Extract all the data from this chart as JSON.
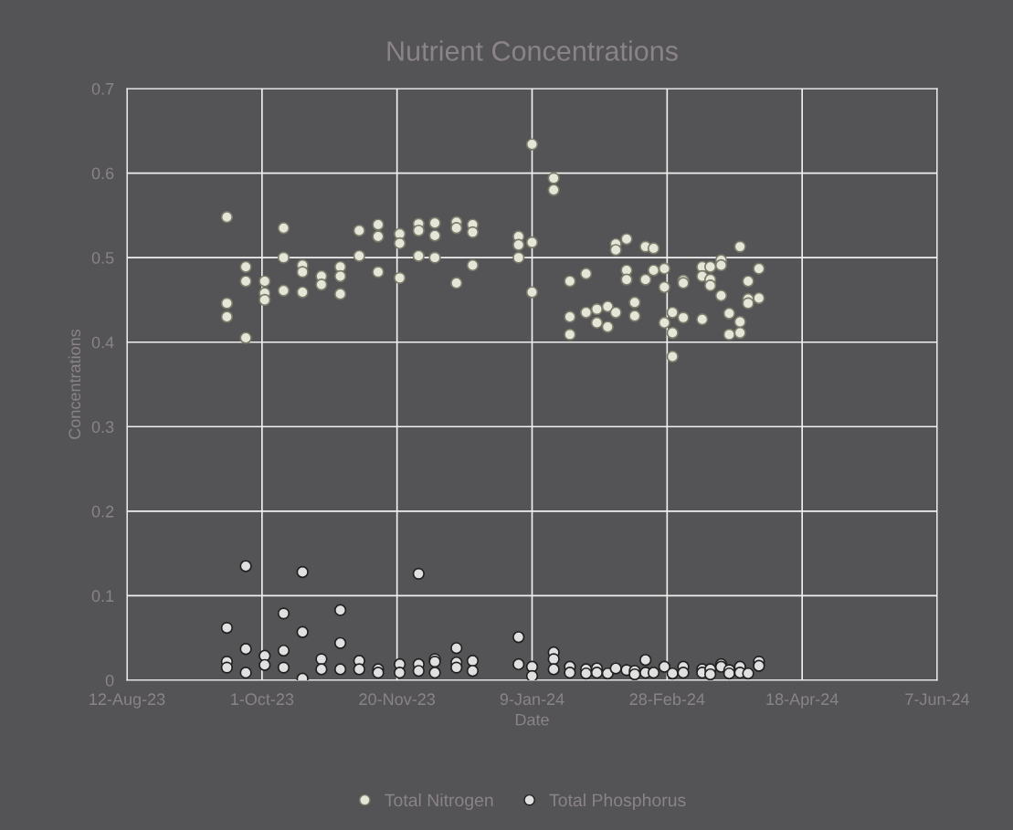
{
  "chart_data": {
    "type": "scatter",
    "title": "Nutrient Concentrations",
    "xlabel": "Date",
    "ylabel": "Concentrations",
    "xlim": [
      "2023-08-12",
      "2024-06-07"
    ],
    "xticks": [
      {
        "value": "2023-08-12",
        "label": "12-Aug-23"
      },
      {
        "value": "2023-10-01",
        "label": "1-Oct-23"
      },
      {
        "value": "2023-11-20",
        "label": "20-Nov-23"
      },
      {
        "value": "2024-01-09",
        "label": "9-Jan-24"
      },
      {
        "value": "2024-02-28",
        "label": "28-Feb-24"
      },
      {
        "value": "2024-04-18",
        "label": "18-Apr-24"
      },
      {
        "value": "2024-06-07",
        "label": "7-Jun-24"
      }
    ],
    "ylim": [
      0,
      0.7
    ],
    "yticks": [
      {
        "value": 0,
        "label": "0"
      },
      0.1,
      0.2,
      0.3,
      0.4,
      0.5,
      0.6,
      0.7
    ],
    "grid": true,
    "legend": "bottom",
    "marker": "circle",
    "series": [
      {
        "name": "Total Nitrogen",
        "color": "#e6e6d8",
        "x": [
          "2023-09-18",
          "2023-09-18",
          "2023-09-18",
          "2023-09-25",
          "2023-09-25",
          "2023-09-25",
          "2023-10-02",
          "2023-10-02",
          "2023-10-02",
          "2023-10-09",
          "2023-10-09",
          "2023-10-09",
          "2023-10-16",
          "2023-10-16",
          "2023-10-16",
          "2023-10-23",
          "2023-10-23",
          "2023-10-30",
          "2023-10-30",
          "2023-10-30",
          "2023-11-06",
          "2023-11-06",
          "2023-11-13",
          "2023-11-13",
          "2023-11-13",
          "2023-11-21",
          "2023-11-21",
          "2023-11-21",
          "2023-11-28",
          "2023-11-28",
          "2023-11-28",
          "2023-12-04",
          "2023-12-04",
          "2023-12-04",
          "2023-12-12",
          "2023-12-12",
          "2023-12-12",
          "2023-12-18",
          "2023-12-18",
          "2023-12-18",
          "2024-01-04",
          "2024-01-04",
          "2024-01-04",
          "2024-01-09",
          "2024-01-09",
          "2024-01-09",
          "2024-01-17",
          "2024-01-17",
          "2024-01-23",
          "2024-01-23",
          "2024-01-23",
          "2024-01-29",
          "2024-01-29",
          "2024-02-02",
          "2024-02-02",
          "2024-02-06",
          "2024-02-06",
          "2024-02-09",
          "2024-02-09",
          "2024-02-09",
          "2024-02-13",
          "2024-02-13",
          "2024-02-13",
          "2024-02-16",
          "2024-02-16",
          "2024-02-20",
          "2024-02-20",
          "2024-02-23",
          "2024-02-23",
          "2024-02-27",
          "2024-02-27",
          "2024-02-27",
          "2024-03-01",
          "2024-03-01",
          "2024-03-01",
          "2024-03-05",
          "2024-03-05",
          "2024-03-05",
          "2024-03-12",
          "2024-03-12",
          "2024-03-12",
          "2024-03-15",
          "2024-03-15",
          "2024-03-15",
          "2024-03-19",
          "2024-03-19",
          "2024-03-19",
          "2024-03-22",
          "2024-03-22",
          "2024-03-26",
          "2024-03-26",
          "2024-03-26",
          "2024-03-29",
          "2024-03-29",
          "2024-03-29",
          "2024-04-02",
          "2024-04-02"
        ],
        "values": [
          0.548,
          0.446,
          0.43,
          0.489,
          0.472,
          0.405,
          0.472,
          0.458,
          0.45,
          0.535,
          0.5,
          0.461,
          0.491,
          0.483,
          0.459,
          0.478,
          0.468,
          0.489,
          0.478,
          0.457,
          0.532,
          0.502,
          0.539,
          0.525,
          0.483,
          0.528,
          0.517,
          0.476,
          0.54,
          0.532,
          0.502,
          0.541,
          0.526,
          0.5,
          0.542,
          0.535,
          0.47,
          0.539,
          0.53,
          0.491,
          0.525,
          0.515,
          0.5,
          0.634,
          0.518,
          0.459,
          0.594,
          0.58,
          0.472,
          0.43,
          0.409,
          0.481,
          0.435,
          0.439,
          0.423,
          0.442,
          0.418,
          0.516,
          0.509,
          0.435,
          0.522,
          0.485,
          0.474,
          0.447,
          0.431,
          0.513,
          0.474,
          0.511,
          0.485,
          0.487,
          0.465,
          0.423,
          0.435,
          0.411,
          0.383,
          0.473,
          0.47,
          0.429,
          0.489,
          0.478,
          0.427,
          0.489,
          0.474,
          0.467,
          0.497,
          0.491,
          0.455,
          0.434,
          0.409,
          0.513,
          0.424,
          0.411,
          0.472,
          0.451,
          0.446,
          0.487,
          0.452
        ]
      },
      {
        "name": "Total Phosphorus",
        "color": "#e0e0e0",
        "x": [
          "2023-09-18",
          "2023-09-18",
          "2023-09-18",
          "2023-09-25",
          "2023-09-25",
          "2023-09-25",
          "2023-10-02",
          "2023-10-02",
          "2023-10-09",
          "2023-10-09",
          "2023-10-09",
          "2023-10-16",
          "2023-10-16",
          "2023-10-16",
          "2023-10-23",
          "2023-10-23",
          "2023-10-30",
          "2023-10-30",
          "2023-10-30",
          "2023-11-06",
          "2023-11-06",
          "2023-11-13",
          "2023-11-13",
          "2023-11-21",
          "2023-11-21",
          "2023-11-28",
          "2023-11-28",
          "2023-11-28",
          "2023-12-04",
          "2023-12-04",
          "2023-12-04",
          "2023-12-12",
          "2023-12-12",
          "2023-12-12",
          "2023-12-18",
          "2023-12-18",
          "2024-01-04",
          "2024-01-04",
          "2024-01-09",
          "2024-01-09",
          "2024-01-17",
          "2024-01-17",
          "2024-01-17",
          "2024-01-23",
          "2024-01-23",
          "2024-01-29",
          "2024-01-29",
          "2024-02-02",
          "2024-02-02",
          "2024-02-06",
          "2024-02-09",
          "2024-02-13",
          "2024-02-16",
          "2024-02-16",
          "2024-02-20",
          "2024-02-20",
          "2024-02-23",
          "2024-02-27",
          "2024-03-01",
          "2024-03-05",
          "2024-03-05",
          "2024-03-12",
          "2024-03-12",
          "2024-03-15",
          "2024-03-15",
          "2024-03-19",
          "2024-03-19",
          "2024-03-22",
          "2024-03-22",
          "2024-03-26",
          "2024-03-26",
          "2024-03-29",
          "2024-04-02",
          "2024-04-02"
        ],
        "values": [
          0.062,
          0.022,
          0.015,
          0.135,
          0.037,
          0.009,
          0.029,
          0.018,
          0.079,
          0.035,
          0.015,
          0.128,
          0.057,
          0.002,
          0.025,
          0.013,
          0.083,
          0.044,
          0.013,
          0.023,
          0.013,
          0.013,
          0.009,
          0.019,
          0.009,
          0.126,
          0.019,
          0.011,
          0.025,
          0.022,
          0.009,
          0.038,
          0.021,
          0.015,
          0.023,
          0.011,
          0.051,
          0.019,
          0.016,
          0.005,
          0.033,
          0.025,
          0.013,
          0.016,
          0.009,
          0.013,
          0.008,
          0.014,
          0.009,
          0.008,
          0.014,
          0.012,
          0.011,
          0.007,
          0.024,
          0.009,
          0.009,
          0.016,
          0.008,
          0.016,
          0.009,
          0.013,
          0.009,
          0.013,
          0.007,
          0.019,
          0.016,
          0.012,
          0.008,
          0.016,
          0.009,
          0.008,
          0.022,
          0.017
        ]
      }
    ]
  }
}
